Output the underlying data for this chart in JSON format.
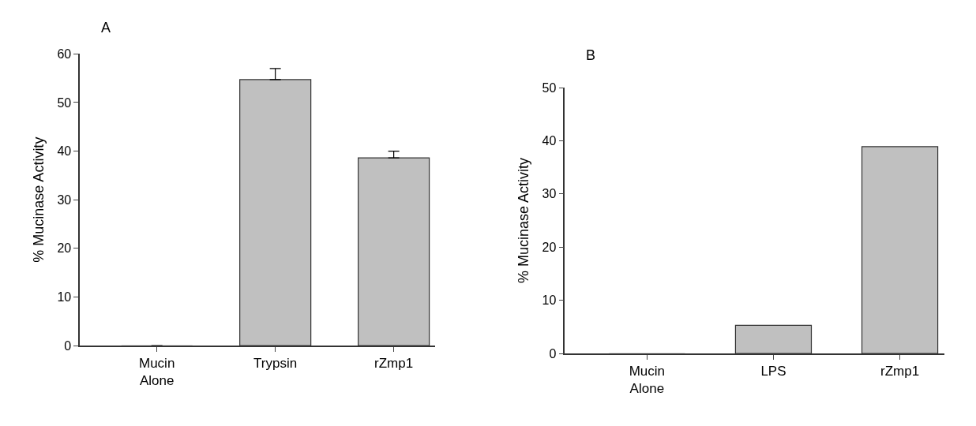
{
  "chart_data": [
    {
      "type": "bar",
      "title": "A",
      "ylabel": "% Mucinase Activity",
      "categories": [
        "Mucin\nAlone",
        "Trypsin",
        "rZmp1"
      ],
      "series": [
        {
          "color": "#c0c0c0",
          "values": [
            0,
            54.7,
            38.6
          ],
          "errors": [
            null,
            [
              54.7,
              57.0
            ],
            [
              38.6,
              40.0
            ]
          ]
        }
      ],
      "ylim": [
        0,
        60
      ],
      "yticks": [
        0,
        10,
        20,
        30,
        40,
        50,
        60
      ]
    },
    {
      "type": "bar",
      "title": "B",
      "ylabel": "% Mucinase Activity",
      "categories": [
        "Mucin\nAlone",
        "LPS",
        "rZmp1"
      ],
      "series": [
        {
          "color": "#c0c0c0",
          "values": [
            0,
            5.3,
            38.9
          ]
        }
      ],
      "ylim": [
        0,
        50
      ],
      "yticks": [
        0,
        10,
        20,
        30,
        40,
        50
      ]
    }
  ]
}
